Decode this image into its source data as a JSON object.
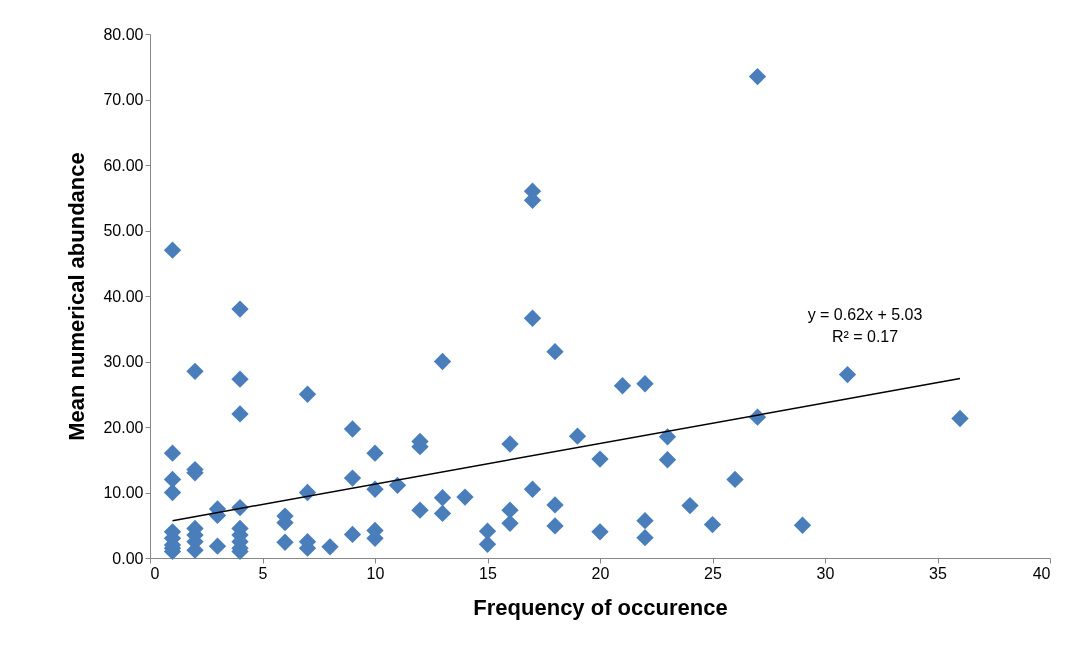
{
  "chart_data": {
    "type": "scatter",
    "xlabel": "Frequency of occurence",
    "ylabel": "Mean numerical abundance",
    "xlim": [
      0,
      40
    ],
    "xticks": [
      0,
      5,
      10,
      15,
      20,
      25,
      30,
      35,
      40
    ],
    "ylim": [
      0,
      80
    ],
    "yticks": [
      {
        "value": 0,
        "label": "0.00"
      },
      {
        "value": 10,
        "label": "10.00"
      },
      {
        "value": 20,
        "label": "20.00"
      },
      {
        "value": 30,
        "label": "30.00"
      },
      {
        "value": 40,
        "label": "40.00"
      },
      {
        "value": 50,
        "label": "50.00"
      },
      {
        "value": 60,
        "label": "60.00"
      },
      {
        "value": 70,
        "label": "70.00"
      },
      {
        "value": 80,
        "label": "80.00"
      }
    ],
    "grid": false,
    "annotations": [
      "y = 0.62x + 5.03",
      "R² = 0.17"
    ],
    "series": [
      {
        "color": "#4a7ebb",
        "marker": "diamond",
        "x": [
          1,
          1,
          1,
          1,
          1,
          1,
          1,
          1,
          1,
          2,
          2,
          2,
          2,
          2,
          2,
          2,
          3,
          3,
          3,
          4,
          4,
          4,
          4,
          4,
          4,
          4,
          4,
          4,
          6,
          6,
          6,
          7,
          7,
          7,
          7,
          8,
          9,
          9,
          9,
          10,
          10,
          10,
          10,
          11,
          12,
          12,
          12,
          13,
          13,
          13,
          14,
          15,
          15,
          16,
          16,
          16,
          17,
          17,
          17,
          17,
          18,
          18,
          18,
          19,
          20,
          20,
          21,
          22,
          22,
          22,
          23,
          23,
          24,
          25,
          26,
          27,
          27,
          29,
          31,
          36
        ],
        "values": [
          47,
          16,
          12,
          10,
          4,
          3,
          2,
          1.5,
          1,
          28.5,
          13.5,
          13,
          4.5,
          3.5,
          2.5,
          1.2,
          7.5,
          6.5,
          1.8,
          38,
          27.3,
          22,
          7.7,
          4.5,
          3.5,
          2.5,
          1.5,
          1,
          6.4,
          5.4,
          2.4,
          25,
          10,
          2.5,
          1.5,
          1.7,
          19.7,
          12.2,
          3.6,
          16,
          10.5,
          4.2,
          3,
          11.1,
          17.8,
          17,
          7.3,
          30,
          9.2,
          6.8,
          9.3,
          4.1,
          2.1,
          17.4,
          7.3,
          5.3,
          56,
          54.6,
          36.6,
          10.5,
          31.5,
          8.1,
          4.9,
          18.6,
          15.1,
          4,
          26.3,
          26.6,
          5.7,
          3.1,
          18.5,
          15,
          8,
          5.1,
          12,
          73.5,
          21.5,
          5,
          28,
          21.3
        ]
      },
      {
        "type": "line",
        "color": "#000000",
        "line_style": "solid",
        "marker": "none",
        "x": [
          1,
          36
        ],
        "values": [
          5.7,
          27.4
        ]
      }
    ]
  }
}
